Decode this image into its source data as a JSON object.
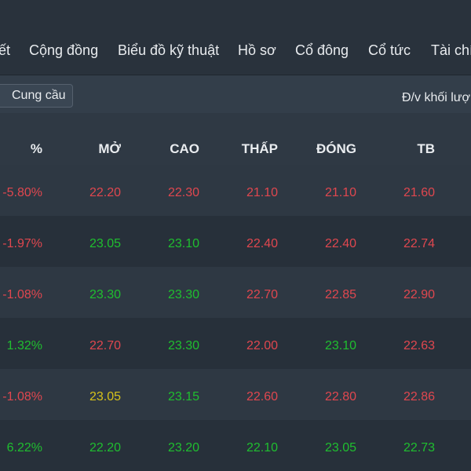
{
  "colors": {
    "down": "#e0474f",
    "up": "#1fbf2f",
    "ref": "#d6c21a"
  },
  "nav": {
    "items": [
      "ết",
      "Cộng đồng",
      "Biểu đồ kỹ thuật",
      "Hồ sơ",
      "Cổ đông",
      "Cổ tức",
      "Tài chí"
    ]
  },
  "toolbar": {
    "supply_demand_label": "Cung cầu",
    "unit_note": "Đ/v khối lượ"
  },
  "table": {
    "headers": [
      "%",
      "MỞ",
      "CAO",
      "THẤP",
      "ĐÓNG",
      "TB"
    ],
    "rows": [
      {
        "pct": "-5.80%",
        "open": "22.20",
        "high": "22.30",
        "low": "21.10",
        "close": "21.10",
        "avg": "21.60",
        "c": [
          "red",
          "red",
          "red",
          "red",
          "red",
          "red"
        ]
      },
      {
        "pct": "-1.97%",
        "open": "23.05",
        "high": "23.10",
        "low": "22.40",
        "close": "22.40",
        "avg": "22.74",
        "c": [
          "red",
          "green",
          "green",
          "red",
          "red",
          "red"
        ]
      },
      {
        "pct": "-1.08%",
        "open": "23.30",
        "high": "23.30",
        "low": "22.70",
        "close": "22.85",
        "avg": "22.90",
        "c": [
          "red",
          "green",
          "green",
          "red",
          "red",
          "red"
        ]
      },
      {
        "pct": "1.32%",
        "open": "22.70",
        "high": "23.30",
        "low": "22.00",
        "close": "23.10",
        "avg": "22.63",
        "c": [
          "green",
          "red",
          "green",
          "red",
          "green",
          "red"
        ]
      },
      {
        "pct": "-1.08%",
        "open": "23.05",
        "high": "23.15",
        "low": "22.60",
        "close": "22.80",
        "avg": "22.86",
        "c": [
          "red",
          "yellow",
          "green",
          "red",
          "red",
          "red"
        ]
      },
      {
        "pct": "6.22%",
        "open": "22.20",
        "high": "23.20",
        "low": "22.10",
        "close": "23.05",
        "avg": "22.73",
        "c": [
          "green",
          "green",
          "green",
          "green",
          "green",
          "green"
        ]
      }
    ]
  }
}
